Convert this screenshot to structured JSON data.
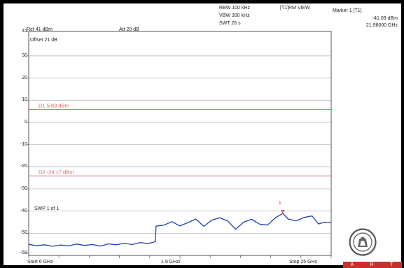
{
  "header": {
    "ref_level": "Ref 41 dBm",
    "att": "Att  20 dB",
    "rbw": "RBW 100 kHz",
    "vbw": "VBW 300 kHz",
    "swt": "SWT 26 s",
    "trace_mode": "[T1]RM VIEW",
    "marker_title": "Marker 1 [T1]",
    "marker_level": "-41.09 dBm",
    "marker_freq": "21.96000 GHz"
  },
  "labels": {
    "offset": "Offset 21 dB",
    "swp": "SWP 1 of 1",
    "start": "Start 6 GHz",
    "span_div": "1.9 GHz/",
    "stop": "Stop 25 GHz",
    "marker_number": "1"
  },
  "logo": {
    "strip_letters": [
      "A",
      "R",
      "T"
    ]
  },
  "colors": {
    "trace": "#1f3fb0",
    "display_line": "#e06060",
    "grid": "#b0b0b0",
    "background": "#000000",
    "logo_strip": "#c8302c"
  },
  "chart_data": {
    "type": "line",
    "xlabel": "",
    "ylabel": "",
    "xlim": [
      6,
      25
    ],
    "ylim": [
      -60,
      41
    ],
    "x_unit": "GHz",
    "y_unit": "dBm",
    "grid": true,
    "y_ticks": [
      {
        "value": 41,
        "label": "41"
      },
      {
        "value": 30,
        "label": "30"
      },
      {
        "value": 20,
        "label": "20"
      },
      {
        "value": 10,
        "label": "10"
      },
      {
        "value": 0,
        "label": "0"
      },
      {
        "value": -10,
        "label": "-10"
      },
      {
        "value": -20,
        "label": "-20"
      },
      {
        "value": -30,
        "label": "-30"
      },
      {
        "value": -40,
        "label": "-40"
      },
      {
        "value": -50,
        "label": "-50"
      },
      {
        "value": -59,
        "label": "-59"
      }
    ],
    "display_lines": [
      {
        "label": "D1 5.83 dBm",
        "value": 5.83
      },
      {
        "label": "D2 -24.17 dBm",
        "value": -24.17
      }
    ],
    "marker": {
      "label": "1",
      "x": 21.96,
      "y": -41.09
    },
    "series": [
      {
        "values": [
          {
            "x": 6.0,
            "y": -55.0
          },
          {
            "x": 6.5,
            "y": -55.6
          },
          {
            "x": 7.0,
            "y": -55.2
          },
          {
            "x": 7.5,
            "y": -55.9
          },
          {
            "x": 8.0,
            "y": -55.3
          },
          {
            "x": 8.5,
            "y": -55.7
          },
          {
            "x": 9.0,
            "y": -54.9
          },
          {
            "x": 9.5,
            "y": -55.5
          },
          {
            "x": 10.0,
            "y": -55.1
          },
          {
            "x": 10.5,
            "y": -55.8
          },
          {
            "x": 11.0,
            "y": -54.8
          },
          {
            "x": 11.5,
            "y": -55.2
          },
          {
            "x": 12.0,
            "y": -54.5
          },
          {
            "x": 12.5,
            "y": -55.1
          },
          {
            "x": 13.0,
            "y": -54.2
          },
          {
            "x": 13.5,
            "y": -54.7
          },
          {
            "x": 13.95,
            "y": -53.8
          },
          {
            "x": 14.0,
            "y": -46.8
          },
          {
            "x": 14.5,
            "y": -46.3
          },
          {
            "x": 15.0,
            "y": -44.8
          },
          {
            "x": 15.5,
            "y": -46.7
          },
          {
            "x": 16.0,
            "y": -45.2
          },
          {
            "x": 16.5,
            "y": -43.6
          },
          {
            "x": 17.0,
            "y": -46.9
          },
          {
            "x": 17.5,
            "y": -44.1
          },
          {
            "x": 18.0,
            "y": -43.0
          },
          {
            "x": 18.5,
            "y": -44.5
          },
          {
            "x": 19.0,
            "y": -48.2
          },
          {
            "x": 19.5,
            "y": -45.0
          },
          {
            "x": 20.0,
            "y": -43.7
          },
          {
            "x": 20.5,
            "y": -45.9
          },
          {
            "x": 21.0,
            "y": -46.3
          },
          {
            "x": 21.5,
            "y": -43.0
          },
          {
            "x": 21.96,
            "y": -41.1
          },
          {
            "x": 22.3,
            "y": -43.6
          },
          {
            "x": 22.8,
            "y": -44.4
          },
          {
            "x": 23.3,
            "y": -42.9
          },
          {
            "x": 23.8,
            "y": -42.2
          },
          {
            "x": 24.2,
            "y": -45.8
          },
          {
            "x": 24.6,
            "y": -45.0
          },
          {
            "x": 25.0,
            "y": -45.3
          }
        ]
      }
    ]
  }
}
